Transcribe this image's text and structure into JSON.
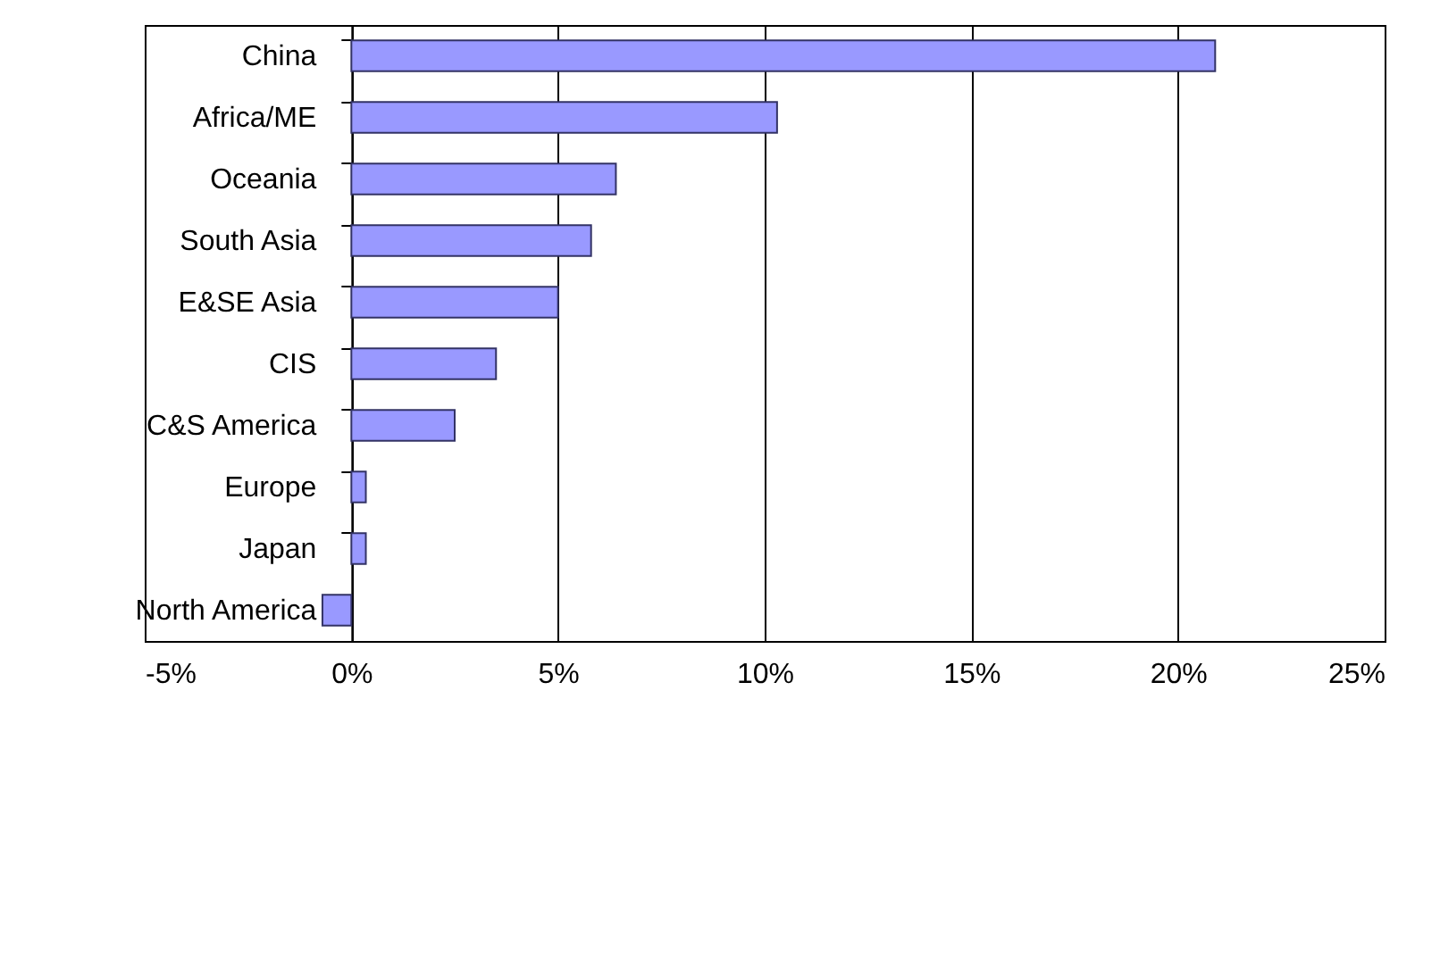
{
  "chart_data": {
    "type": "bar",
    "orientation": "horizontal",
    "categories": [
      "China",
      "Africa/ME",
      "Oceania",
      "South Asia",
      "E&SE Asia",
      "CIS",
      "C&S America",
      "Europe",
      "Japan",
      "North America"
    ],
    "values": [
      20.9,
      10.3,
      6.4,
      5.8,
      5.0,
      3.5,
      2.5,
      0.35,
      0.35,
      -0.7
    ],
    "color": "#9999ff",
    "xlim": [
      -5,
      25
    ],
    "xticks": [
      {
        "value": -5,
        "label": "-5%"
      },
      {
        "value": 0,
        "label": "0%"
      },
      {
        "value": 5,
        "label": "5%"
      },
      {
        "value": 10,
        "label": "10%"
      },
      {
        "value": 15,
        "label": "15%"
      },
      {
        "value": 20,
        "label": "20%"
      },
      {
        "value": 25,
        "label": "25%"
      }
    ],
    "grid": "x"
  }
}
